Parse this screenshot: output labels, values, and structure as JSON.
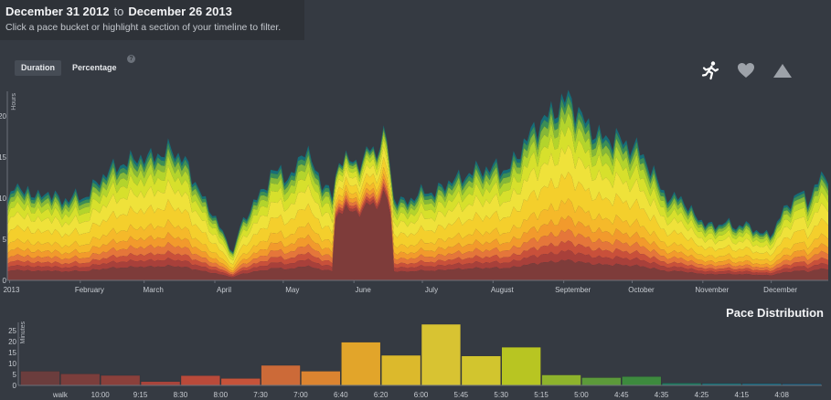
{
  "header": {
    "start_date": "December 31 2012",
    "to_word": "to",
    "end_date": "December 26 2013",
    "instructions": "Click a pace bucket or highlight a section of your timeline to filter."
  },
  "toggles": {
    "duration": "Duration",
    "percentage": "Percentage",
    "help": "?"
  },
  "metric_icons": [
    "running-person-icon",
    "heart-icon",
    "mountain-icon"
  ],
  "colors": {
    "background": "#353a42",
    "header": "#2e3238",
    "layers": [
      "#7e3c3a",
      "#a8403a",
      "#c9503a",
      "#e5763a",
      "#f29a2c",
      "#f5b92a",
      "#f4cf2c",
      "#efe23a",
      "#d7e02c",
      "#b3d42c",
      "#86b838",
      "#3c8e55",
      "#166d78"
    ]
  },
  "pace_distribution": {
    "title": "Pace Distribution"
  },
  "chart_data": [
    {
      "type": "area",
      "stacked": true,
      "ylabel": "Hours",
      "ylim": [
        0,
        23
      ],
      "yticks": [
        0,
        5,
        10,
        15,
        20
      ],
      "x_start": "2012-12-31",
      "x_end": "2013-12-26",
      "x_tick_labels": [
        "2013",
        "February",
        "March",
        "April",
        "May",
        "June",
        "July",
        "August",
        "September",
        "October",
        "November",
        "December"
      ],
      "x_tick_dates": [
        "2013-01-01",
        "2013-02-01",
        "2013-03-01",
        "2013-04-01",
        "2013-05-01",
        "2013-06-01",
        "2013-07-01",
        "2013-08-01",
        "2013-09-01",
        "2013-10-01",
        "2013-11-01",
        "2013-12-01"
      ],
      "profile": [
        [
          "2012-12-31",
          9.5
        ],
        [
          "2013-01-03",
          12.0
        ],
        [
          "2013-01-06",
          10.5
        ],
        [
          "2013-01-09",
          11.2
        ],
        [
          "2013-01-13",
          10.0
        ],
        [
          "2013-01-18",
          10.8
        ],
        [
          "2013-01-24",
          9.6
        ],
        [
          "2013-01-29",
          10.3
        ],
        [
          "2013-02-03",
          10.0
        ],
        [
          "2013-02-07",
          11.5
        ],
        [
          "2013-02-12",
          13.0
        ],
        [
          "2013-02-17",
          14.0
        ],
        [
          "2013-02-22",
          14.3
        ],
        [
          "2013-02-26",
          15.2
        ],
        [
          "2013-03-02",
          14.5
        ],
        [
          "2013-03-06",
          15.8
        ],
        [
          "2013-03-09",
          14.8
        ],
        [
          "2013-03-13",
          16.5
        ],
        [
          "2013-03-16",
          15.0
        ],
        [
          "2013-03-20",
          14.2
        ],
        [
          "2013-03-24",
          11.5
        ],
        [
          "2013-03-28",
          9.5
        ],
        [
          "2013-04-01",
          7.8
        ],
        [
          "2013-04-04",
          6.0
        ],
        [
          "2013-04-07",
          4.5
        ],
        [
          "2013-04-09",
          3.3
        ],
        [
          "2013-04-12",
          6.5
        ],
        [
          "2013-04-15",
          8.0
        ],
        [
          "2013-04-18",
          9.3
        ],
        [
          "2013-04-22",
          11.0
        ],
        [
          "2013-04-26",
          13.0
        ],
        [
          "2013-04-30",
          13.5
        ],
        [
          "2013-05-04",
          12.0
        ],
        [
          "2013-05-07",
          14.0
        ],
        [
          "2013-05-10",
          16.5
        ],
        [
          "2013-05-14",
          14.0
        ],
        [
          "2013-05-18",
          12.0
        ],
        [
          "2013-05-23",
          10.0
        ],
        [
          "2013-05-25",
          15.0
        ],
        [
          "2013-05-28",
          14.5
        ],
        [
          "2013-06-01",
          14.6
        ],
        [
          "2013-06-05",
          14.2
        ],
        [
          "2013-06-08",
          16.5
        ],
        [
          "2013-06-11",
          15.5
        ],
        [
          "2013-06-13",
          17.0
        ],
        [
          "2013-06-16",
          17.5
        ],
        [
          "2013-06-18",
          10.0
        ],
        [
          "2013-06-22",
          9.5
        ],
        [
          "2013-06-27",
          10.0
        ],
        [
          "2013-07-02",
          11.0
        ],
        [
          "2013-07-06",
          10.5
        ],
        [
          "2013-07-10",
          11.5
        ],
        [
          "2013-07-14",
          12.2
        ],
        [
          "2013-07-18",
          12.5
        ],
        [
          "2013-07-22",
          13.0
        ],
        [
          "2013-07-26",
          13.7
        ],
        [
          "2013-07-30",
          13.4
        ],
        [
          "2013-08-03",
          14.0
        ],
        [
          "2013-08-07",
          13.2
        ],
        [
          "2013-08-11",
          15.0
        ],
        [
          "2013-08-15",
          16.8
        ],
        [
          "2013-08-19",
          18.5
        ],
        [
          "2013-08-23",
          19.5
        ],
        [
          "2013-08-27",
          20.5
        ],
        [
          "2013-08-31",
          21.5
        ],
        [
          "2013-09-03",
          22.3
        ],
        [
          "2013-09-06",
          21.2
        ],
        [
          "2013-09-09",
          19.8
        ],
        [
          "2013-09-12",
          18.7
        ],
        [
          "2013-09-16",
          17.8
        ],
        [
          "2013-09-20",
          17.0
        ],
        [
          "2013-09-24",
          17.6
        ],
        [
          "2013-09-28",
          16.4
        ],
        [
          "2013-10-02",
          16.5
        ],
        [
          "2013-10-06",
          15.0
        ],
        [
          "2013-10-10",
          13.3
        ],
        [
          "2013-10-14",
          11.0
        ],
        [
          "2013-10-18",
          9.8
        ],
        [
          "2013-10-22",
          10.3
        ],
        [
          "2013-10-26",
          8.7
        ],
        [
          "2013-10-30",
          7.5
        ],
        [
          "2013-11-03",
          6.8
        ],
        [
          "2013-11-07",
          6.5
        ],
        [
          "2013-11-11",
          7.3
        ],
        [
          "2013-11-15",
          6.3
        ],
        [
          "2013-11-19",
          7.0
        ],
        [
          "2013-11-23",
          6.2
        ],
        [
          "2013-11-27",
          5.8
        ],
        [
          "2013-12-01",
          5.4
        ],
        [
          "2013-12-05",
          8.0
        ],
        [
          "2013-12-09",
          9.2
        ],
        [
          "2013-12-13",
          11.0
        ],
        [
          "2013-12-17",
          9.5
        ],
        [
          "2013-12-21",
          12.0
        ],
        [
          "2013-12-26",
          12.8
        ]
      ],
      "layer_fractions": [
        0.11,
        0.05,
        0.05,
        0.06,
        0.07,
        0.09,
        0.14,
        0.14,
        0.1,
        0.07,
        0.05,
        0.04,
        0.03
      ],
      "walk_fraction_override": [
        [
          "2013-05-24",
          "2013-06-18",
          0.58
        ]
      ]
    },
    {
      "type": "bar",
      "title": "Pace Distribution",
      "ylabel": "Minutes",
      "ylim": [
        0,
        28
      ],
      "yticks": [
        0,
        5,
        10,
        15,
        20,
        25
      ],
      "categories": [
        "walk",
        "10:00",
        "9:15",
        "8:30",
        "8:00",
        "7:30",
        "7:00",
        "6:40",
        "6:20",
        "6:00",
        "5:45",
        "5:30",
        "5:15",
        "5:00",
        "4:45",
        "4:35",
        "4:25",
        "4:15",
        "4:08",
        ""
      ],
      "values": [
        6.5,
        5.3,
        4.6,
        1.8,
        4.5,
        3.2,
        9.2,
        6.5,
        19.8,
        13.8,
        28.0,
        13.5,
        17.5,
        4.8,
        3.6,
        4.1,
        1.1,
        1.0,
        0.9,
        0.8
      ],
      "colors": [
        "#6b3d3d",
        "#7b3e3c",
        "#8a403b",
        "#a8443b",
        "#b94a3a",
        "#c6533a",
        "#cc6a38",
        "#dc8430",
        "#e2a52a",
        "#dcb92c",
        "#d8c332",
        "#d2c52e",
        "#b8c522",
        "#8eb32c",
        "#5c9a3a",
        "#3d8a3e",
        "#1e7860",
        "#196c74",
        "#17647c",
        "#155e80"
      ]
    }
  ]
}
